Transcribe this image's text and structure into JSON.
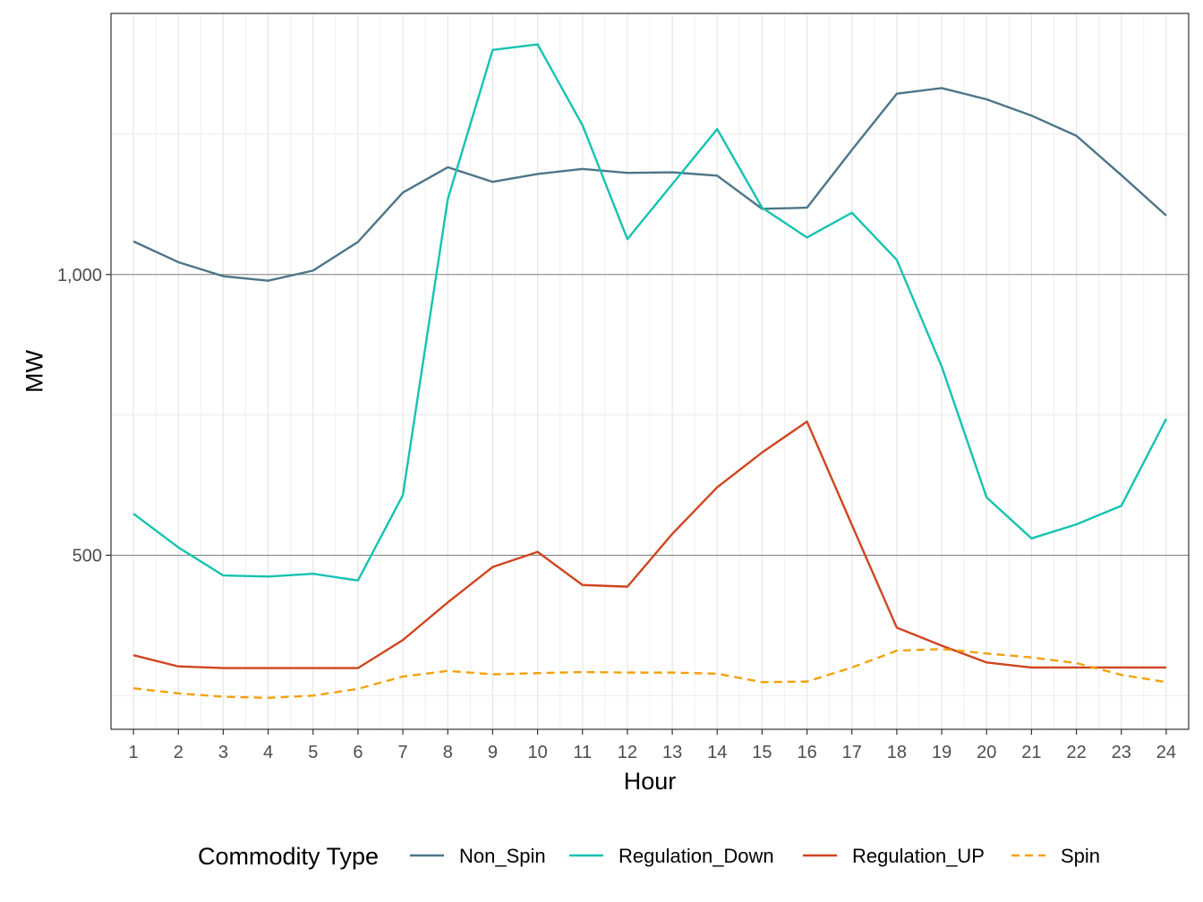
{
  "chart_data": {
    "type": "line",
    "xlabel": "Hour",
    "ylabel": "MW",
    "x": [
      1,
      2,
      3,
      4,
      5,
      6,
      7,
      8,
      9,
      10,
      11,
      12,
      13,
      14,
      15,
      16,
      17,
      18,
      19,
      20,
      21,
      22,
      23,
      24
    ],
    "x_ticks": [
      "1",
      "2",
      "3",
      "4",
      "5",
      "6",
      "7",
      "8",
      "9",
      "10",
      "11",
      "12",
      "13",
      "14",
      "15",
      "16",
      "17",
      "18",
      "19",
      "20",
      "21",
      "22",
      "23",
      "24"
    ],
    "ylim": [
      190,
      1465
    ],
    "y_major_ticks": [
      500,
      1000
    ],
    "y_tick_labels": [
      "500",
      "1,000"
    ],
    "y_minor_ticks": [
      250,
      750,
      1250
    ],
    "grid": true,
    "legend_title": "Commodity Type",
    "legend_position": "bottom",
    "series": [
      {
        "name": "Non_Spin",
        "color": "#4e7588",
        "dash": "solid",
        "values": [
          1059,
          1022,
          997,
          989,
          1007,
          1058,
          1146,
          1191,
          1165,
          1179,
          1188,
          1181,
          1182,
          1176,
          1117,
          1119,
          1222,
          1322,
          1332,
          1312,
          1283,
          1247,
          1177,
          1105
        ]
      },
      {
        "name": "Regulation_Down",
        "color": "#15c3b0",
        "dash": "solid",
        "values": [
          574,
          514,
          464,
          462,
          467,
          455,
          607,
          1134,
          1400,
          1410,
          1266,
          1063,
          1161,
          1259,
          1119,
          1066,
          1110,
          1026,
          836,
          603,
          530,
          555,
          588,
          743
        ]
      },
      {
        "name": "Regulation_UP",
        "color": "#cf4520",
        "dash": "solid",
        "values": [
          322,
          302,
          299,
          299,
          299,
          299,
          349,
          416,
          479,
          506,
          447,
          444,
          538,
          621,
          683,
          738,
          554,
          371,
          339,
          309,
          300,
          300,
          300,
          300
        ]
      },
      {
        "name": "Spin",
        "color": "#f2a20d",
        "dash": "dashed",
        "values": [
          263,
          254,
          248,
          246,
          250,
          262,
          284,
          294,
          288,
          290,
          292,
          291,
          291,
          289,
          274,
          275,
          300,
          330,
          333,
          325,
          318,
          308,
          287,
          274
        ]
      }
    ]
  }
}
